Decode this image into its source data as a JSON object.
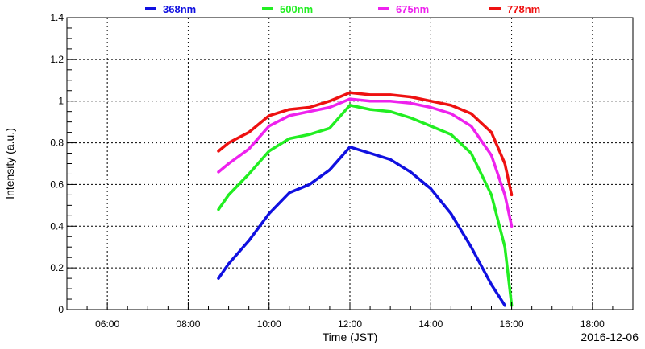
{
  "chart_data": {
    "type": "line",
    "title": "",
    "xlabel": "Time (JST)",
    "ylabel": "Intensity (a.u.)",
    "date_label": "2016-12-06",
    "xlim": [
      "05:00",
      "19:00"
    ],
    "ylim": [
      0,
      1.4
    ],
    "grid": true,
    "legend_placement": "top",
    "x_ticks": [
      "06:00",
      "08:00",
      "10:00",
      "12:00",
      "14:00",
      "16:00",
      "18:00"
    ],
    "y_ticks": [
      "0",
      "0.2",
      "0.4",
      "0.6",
      "0.8",
      "1",
      "1.2",
      "1.4"
    ],
    "series": [
      {
        "name": "368nm",
        "color": "#1010e0",
        "x": [
          "08:45",
          "09:00",
          "09:30",
          "10:00",
          "10:30",
          "11:00",
          "11:30",
          "12:00",
          "12:30",
          "13:00",
          "13:30",
          "14:00",
          "14:30",
          "15:00",
          "15:30",
          "15:50"
        ],
        "values": [
          0.15,
          0.22,
          0.33,
          0.46,
          0.56,
          0.6,
          0.67,
          0.78,
          0.75,
          0.72,
          0.66,
          0.58,
          0.46,
          0.3,
          0.12,
          0.02
        ]
      },
      {
        "name": "500nm",
        "color": "#22ee22",
        "x": [
          "08:45",
          "09:00",
          "09:30",
          "10:00",
          "10:30",
          "11:00",
          "11:30",
          "12:00",
          "12:30",
          "13:00",
          "13:30",
          "14:00",
          "14:30",
          "15:00",
          "15:30",
          "15:50",
          "16:00"
        ],
        "values": [
          0.48,
          0.55,
          0.65,
          0.76,
          0.82,
          0.84,
          0.87,
          0.98,
          0.96,
          0.95,
          0.92,
          0.88,
          0.84,
          0.75,
          0.55,
          0.3,
          0.02
        ]
      },
      {
        "name": "675nm",
        "color": "#ee22ee",
        "x": [
          "08:45",
          "09:00",
          "09:30",
          "10:00",
          "10:30",
          "11:00",
          "11:30",
          "12:00",
          "12:30",
          "13:00",
          "13:30",
          "14:00",
          "14:30",
          "15:00",
          "15:30",
          "15:50",
          "16:00"
        ],
        "values": [
          0.66,
          0.7,
          0.77,
          0.88,
          0.93,
          0.95,
          0.97,
          1.01,
          1.0,
          1.0,
          0.99,
          0.97,
          0.94,
          0.88,
          0.74,
          0.55,
          0.4
        ]
      },
      {
        "name": "778nm",
        "color": "#ee1111",
        "x": [
          "08:45",
          "09:00",
          "09:30",
          "10:00",
          "10:30",
          "11:00",
          "11:30",
          "12:00",
          "12:30",
          "13:00",
          "13:30",
          "14:00",
          "14:30",
          "15:00",
          "15:30",
          "15:50",
          "16:00"
        ],
        "values": [
          0.76,
          0.8,
          0.85,
          0.93,
          0.96,
          0.97,
          1.0,
          1.04,
          1.03,
          1.03,
          1.02,
          1.0,
          0.98,
          0.94,
          0.85,
          0.7,
          0.55
        ]
      }
    ]
  }
}
